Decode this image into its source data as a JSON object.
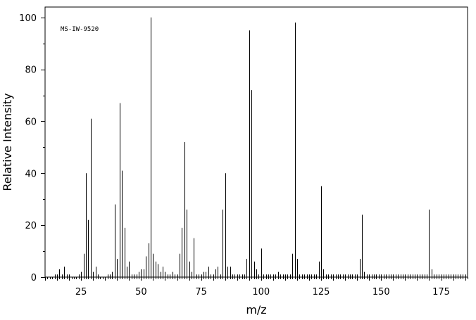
{
  "chart_data": {
    "type": "bar",
    "title": "",
    "annotation": "MS-IW-9520",
    "xlabel": "m/z",
    "ylabel": "Relative Intensity",
    "xlim": [
      10,
      186
    ],
    "ylim": [
      0,
      104
    ],
    "x_ticks": [
      25,
      50,
      75,
      100,
      125,
      150,
      175
    ],
    "y_ticks": [
      0,
      20,
      40,
      60,
      80,
      100
    ],
    "grid": false,
    "x": [
      14,
      15,
      16,
      17,
      18,
      19,
      20,
      24,
      25,
      26,
      27,
      28,
      29,
      30,
      31,
      32,
      36,
      37,
      38,
      39,
      40,
      41,
      42,
      43,
      44,
      45,
      46,
      47,
      48,
      49,
      50,
      51,
      52,
      53,
      54,
      55,
      56,
      57,
      58,
      59,
      60,
      61,
      62,
      63,
      64,
      65,
      66,
      67,
      68,
      69,
      70,
      71,
      72,
      73,
      74,
      75,
      76,
      77,
      78,
      79,
      80,
      81,
      82,
      83,
      84,
      85,
      86,
      87,
      88,
      89,
      90,
      91,
      92,
      93,
      94,
      95,
      96,
      97,
      98,
      99,
      100,
      101,
      102,
      103,
      104,
      105,
      106,
      107,
      108,
      109,
      110,
      111,
      112,
      113,
      114,
      115,
      116,
      117,
      118,
      119,
      120,
      121,
      122,
      123,
      124,
      125,
      126,
      127,
      128,
      129,
      130,
      131,
      132,
      133,
      134,
      135,
      136,
      137,
      138,
      139,
      140,
      141,
      142,
      143,
      144,
      145,
      146,
      147,
      148,
      149,
      150,
      151,
      152,
      153,
      154,
      155,
      156,
      157,
      158,
      159,
      160,
      161,
      162,
      163,
      164,
      165,
      166,
      167,
      168,
      169,
      170,
      171,
      172,
      173,
      174,
      175,
      176,
      177,
      178,
      179,
      180,
      181,
      182,
      183,
      184,
      185
    ],
    "values": [
      1,
      1,
      3,
      1,
      4,
      1,
      1,
      1,
      2,
      9,
      40,
      22,
      61,
      2,
      4,
      1,
      1,
      1,
      2,
      28,
      7,
      67,
      41,
      19,
      4,
      6,
      1,
      1,
      1,
      2,
      3,
      3,
      8,
      13,
      100,
      9,
      6,
      5,
      2,
      4,
      2,
      1,
      1,
      2,
      1,
      1,
      9,
      19,
      52,
      26,
      6,
      2,
      15,
      1,
      1,
      1,
      2,
      2,
      4,
      1,
      1,
      3,
      4,
      1,
      26,
      40,
      4,
      4,
      1,
      1,
      1,
      1,
      1,
      1,
      7,
      95,
      72,
      6,
      3,
      1,
      11,
      1,
      1,
      1,
      1,
      1,
      1,
      2,
      1,
      1,
      1,
      1,
      1,
      9,
      98,
      7,
      1,
      1,
      1,
      1,
      1,
      1,
      1,
      1,
      6,
      35,
      3,
      1,
      1,
      1,
      1,
      1,
      1,
      1,
      1,
      1,
      1,
      1,
      1,
      1,
      1,
      7,
      24,
      2,
      1,
      1,
      1,
      1,
      1,
      1,
      1,
      1,
      1,
      1,
      1,
      1,
      1,
      1,
      1,
      1,
      1,
      1,
      1,
      1,
      1,
      1,
      1,
      1,
      1,
      1,
      26,
      3,
      1,
      1,
      1,
      1,
      1,
      1,
      1,
      1,
      1,
      1,
      1,
      1,
      1,
      1
    ]
  }
}
